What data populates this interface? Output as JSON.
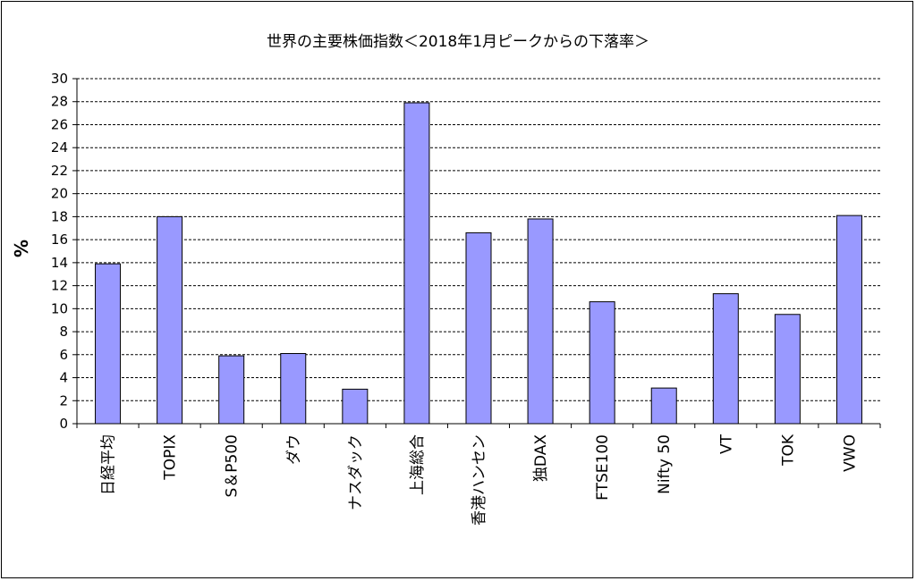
{
  "chart_data": {
    "type": "bar",
    "title": "世界の主要株価指数＜2018年1月ピークからの下落率＞",
    "xlabel": "",
    "ylabel": "%",
    "ylim": [
      0,
      30
    ],
    "ytick_step": 2,
    "grid": true,
    "legend": "none",
    "bar_color": "#9999ff",
    "categories": [
      "日経平均",
      "TOPIX",
      "S＆P500",
      "ダウ",
      "ナスダック",
      "上海総合",
      "香港ハンセン",
      "独DAX",
      "FTSE100",
      "Nifty 50",
      "VT",
      "TOK",
      "VWO"
    ],
    "values": [
      13.9,
      18.0,
      5.9,
      6.1,
      3.0,
      27.9,
      16.6,
      17.8,
      10.6,
      3.1,
      11.3,
      9.5,
      18.1
    ]
  }
}
